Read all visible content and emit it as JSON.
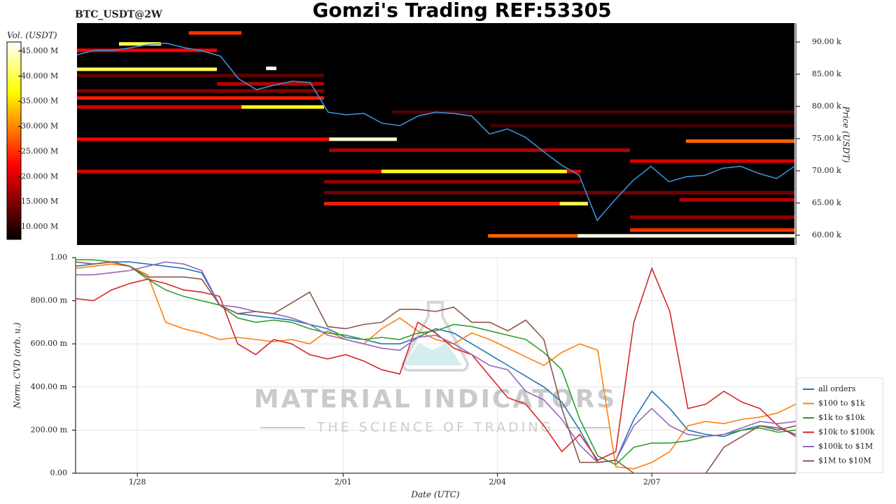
{
  "chart_data": [
    {
      "type": "heatmap",
      "title": "Gomzi's Trading REF:53305",
      "subtitle": "BTC_USDT@2W",
      "y_label": "Price (USDT)",
      "colorbar_label": "Vol. (USDT)",
      "xlim": [
        26.8,
        40.8
      ],
      "ylim": [
        58480,
        92930
      ],
      "yticks": [
        {
          "value": 60000,
          "label": "60.00 k"
        },
        {
          "value": 65000,
          "label": "65.00 k"
        },
        {
          "value": 70000,
          "label": "70.00 k"
        },
        {
          "value": 75000,
          "label": "75.00 k"
        },
        {
          "value": 80000,
          "label": "80.00 k"
        },
        {
          "value": 85000,
          "label": "85.00 k"
        },
        {
          "value": 90000,
          "label": "90.00 k"
        }
      ],
      "zlim": [
        7500000,
        46800000
      ],
      "zticks": [
        {
          "value": 10000000,
          "label": "10.000 M"
        },
        {
          "value": 15000000,
          "label": "15.000 M"
        },
        {
          "value": 20000000,
          "label": "20.000 M"
        },
        {
          "value": 25000000,
          "label": "25.000 M"
        },
        {
          "value": 30000000,
          "label": "30.000 M"
        },
        {
          "value": 35000000,
          "label": "35.000 M"
        },
        {
          "value": 40000000,
          "label": "40.000 M"
        },
        {
          "value": 45000000,
          "label": "45.000 M"
        }
      ],
      "heatmap": {
        "price": [
          91400,
          88700,
          89700,
          85760,
          84800,
          83500,
          82400,
          81300,
          79900,
          79900,
          74900,
          74900,
          74600,
          73200,
          71500,
          69900,
          69900,
          68300,
          66600,
          65500,
          64900,
          64900,
          62800,
          60800,
          59900,
          59900,
          79100,
          77000,
          85900
        ],
        "start": [
          28.98,
          26.8,
          27.62,
          26.8,
          26.8,
          29.53,
          26.8,
          26.8,
          26.8,
          30.01,
          26.8,
          31.72,
          38.68,
          31.72,
          37.59,
          26.8,
          32.74,
          31.62,
          31.62,
          38.55,
          31.62,
          36.22,
          37.59,
          37.59,
          34.82,
          36.57,
          32.95,
          34.86,
          30.49
        ],
        "end": [
          30.01,
          29.53,
          28.44,
          29.53,
          31.62,
          31.62,
          31.62,
          31.62,
          31.62,
          31.62,
          31.72,
          33.04,
          40.8,
          37.59,
          40.8,
          36.63,
          36.36,
          36.63,
          40.8,
          40.8,
          36.77,
          36.77,
          40.8,
          40.8,
          40.8,
          40.8,
          40.8,
          40.8,
          30.69
        ],
        "volume": [
          25000000,
          22000000,
          40000000,
          40000000,
          13000000,
          18000000,
          15000000,
          24000000,
          20000000,
          38000000,
          22000000,
          45000000,
          28000000,
          18000000,
          20000000,
          20000000,
          38000000,
          16000000,
          14000000,
          18000000,
          24000000,
          40000000,
          16000000,
          25000000,
          28000000,
          46000000,
          12000000,
          11000000,
          46500000
        ]
      },
      "price_line": {
        "color": "#3b8ed6",
        "x": [
          26.8,
          27.15,
          27.5,
          27.85,
          28.2,
          28.55,
          28.9,
          29.25,
          29.6,
          29.95,
          30.3,
          30.65,
          31.0,
          31.35,
          31.7,
          32.05,
          32.4,
          32.75,
          33.1,
          33.45,
          33.8,
          34.15,
          34.5,
          34.85,
          35.2,
          35.55,
          35.9,
          36.25,
          36.6,
          36.95,
          37.3,
          37.65,
          38.0,
          38.35,
          38.7,
          39.05,
          39.4,
          39.75,
          40.1,
          40.45,
          40.8
        ],
        "values": [
          88000,
          88700,
          88700,
          89100,
          89600,
          89800,
          89100,
          88600,
          87800,
          84300,
          82600,
          83300,
          83900,
          83700,
          79100,
          78700,
          78900,
          77400,
          77000,
          78500,
          79100,
          78900,
          78500,
          75700,
          76500,
          75200,
          73000,
          70900,
          69300,
          62300,
          65500,
          68500,
          70700,
          68300,
          69100,
          69300,
          70400,
          70700,
          69600,
          68800,
          70700
        ]
      }
    },
    {
      "type": "line",
      "y_label": "Norm. CVD (arb. u.)",
      "x_label": "Date (UTC)",
      "xlim": [
        26.8,
        40.8
      ],
      "xticks": [
        {
          "value": 28,
          "label": "1/28"
        },
        {
          "value": 32,
          "label": "2/01"
        },
        {
          "value": 35,
          "label": "2/04"
        },
        {
          "value": 38,
          "label": "2/07"
        }
      ],
      "ylim": [
        0,
        1
      ],
      "yticks": [
        {
          "value": 0,
          "label": "0.00"
        },
        {
          "value": 0.2,
          "label": "200.00 m"
        },
        {
          "value": 0.4,
          "label": "400.00 m"
        },
        {
          "value": 0.6,
          "label": "600.00 m"
        },
        {
          "value": 0.8,
          "label": "800.00 m"
        },
        {
          "value": 1,
          "label": "1.00"
        }
      ],
      "grid": true,
      "x": [
        26.8,
        27.15,
        27.5,
        27.85,
        28.2,
        28.55,
        28.9,
        29.25,
        29.6,
        29.95,
        30.3,
        30.65,
        31.0,
        31.35,
        31.7,
        32.05,
        32.4,
        32.75,
        33.1,
        33.45,
        33.8,
        34.15,
        34.5,
        34.85,
        35.2,
        35.55,
        35.9,
        36.25,
        36.6,
        36.95,
        37.3,
        37.65,
        38.0,
        38.35,
        38.7,
        39.05,
        39.4,
        39.75,
        40.1,
        40.45,
        40.8
      ],
      "series": [
        {
          "name": "all orders",
          "color": "#1f77b4",
          "values": [
            0.96,
            0.97,
            0.98,
            0.98,
            0.97,
            0.96,
            0.95,
            0.93,
            0.78,
            0.74,
            0.73,
            0.72,
            0.71,
            0.69,
            0.67,
            0.63,
            0.62,
            0.6,
            0.6,
            0.63,
            0.67,
            0.65,
            0.6,
            0.55,
            0.5,
            0.45,
            0.4,
            0.33,
            0.2,
            0.05,
            0.06,
            0.25,
            0.38,
            0.3,
            0.2,
            0.18,
            0.17,
            0.2,
            0.22,
            0.21,
            0.18
          ]
        },
        {
          "name": "$100 to $1k",
          "color": "#ff7f0e",
          "values": [
            0.95,
            0.96,
            0.97,
            0.96,
            0.92,
            0.7,
            0.67,
            0.65,
            0.62,
            0.63,
            0.62,
            0.61,
            0.62,
            0.6,
            0.66,
            0.62,
            0.6,
            0.67,
            0.72,
            0.66,
            0.62,
            0.6,
            0.65,
            0.62,
            0.58,
            0.54,
            0.5,
            0.56,
            0.6,
            0.57,
            0.03,
            0.02,
            0.05,
            0.1,
            0.22,
            0.24,
            0.23,
            0.25,
            0.26,
            0.28,
            0.32
          ]
        },
        {
          "name": "$1k to $10k",
          "color": "#2ca02c",
          "values": [
            0.99,
            0.99,
            0.98,
            0.96,
            0.9,
            0.85,
            0.82,
            0.8,
            0.78,
            0.72,
            0.7,
            0.71,
            0.7,
            0.67,
            0.65,
            0.64,
            0.62,
            0.63,
            0.62,
            0.65,
            0.66,
            0.69,
            0.68,
            0.66,
            0.64,
            0.62,
            0.56,
            0.48,
            0.25,
            0.08,
            0.04,
            0.12,
            0.14,
            0.14,
            0.15,
            0.17,
            0.18,
            0.2,
            0.21,
            0.19,
            0.2
          ]
        },
        {
          "name": "$10k to $100k",
          "color": "#d62728",
          "values": [
            0.81,
            0.8,
            0.85,
            0.88,
            0.9,
            0.88,
            0.85,
            0.84,
            0.82,
            0.6,
            0.55,
            0.62,
            0.6,
            0.55,
            0.53,
            0.55,
            0.52,
            0.48,
            0.46,
            0.7,
            0.65,
            0.58,
            0.55,
            0.45,
            0.35,
            0.32,
            0.22,
            0.1,
            0.18,
            0.06,
            0.1,
            0.7,
            0.95,
            0.75,
            0.3,
            0.32,
            0.38,
            0.33,
            0.3,
            0.22,
            0.17
          ]
        },
        {
          "name": "$100k to $1M",
          "color": "#9467bd",
          "values": [
            0.92,
            0.92,
            0.93,
            0.94,
            0.96,
            0.98,
            0.97,
            0.94,
            0.78,
            0.77,
            0.75,
            0.74,
            0.72,
            0.69,
            0.64,
            0.62,
            0.6,
            0.58,
            0.57,
            0.63,
            0.64,
            0.6,
            0.55,
            0.5,
            0.48,
            0.38,
            0.34,
            0.25,
            0.13,
            0.05,
            0.06,
            0.22,
            0.3,
            0.22,
            0.18,
            0.17,
            0.18,
            0.21,
            0.24,
            0.23,
            0.24
          ]
        },
        {
          "name": "$1M to $10M",
          "color": "#8c564b",
          "values": [
            0.98,
            0.97,
            0.98,
            0.96,
            0.91,
            0.91,
            0.91,
            0.9,
            0.78,
            0.74,
            0.75,
            0.74,
            0.79,
            0.84,
            0.68,
            0.67,
            0.69,
            0.7,
            0.76,
            0.76,
            0.75,
            0.77,
            0.7,
            0.7,
            0.66,
            0.71,
            0.62,
            0.3,
            0.05,
            0.05,
            0.06,
            0.0,
            0.0,
            0.0,
            0.0,
            0.0,
            0.12,
            0.17,
            0.22,
            0.2,
            0.22
          ]
        }
      ]
    }
  ],
  "watermark": {
    "title": "MATERIAL INDICATORS",
    "subtitle": "THE SCIENCE OF TRADING"
  }
}
